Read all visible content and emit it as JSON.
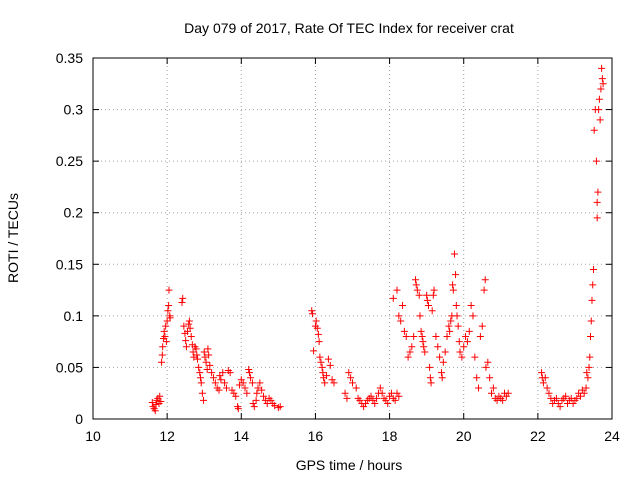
{
  "chart_data": {
    "type": "scatter",
    "title": "Day 079 of 2017, Rate Of TEC Index for receiver crat",
    "xlabel": "GPS time / hours",
    "ylabel": "ROTI / TECUs",
    "xlim": [
      10,
      24
    ],
    "ylim": [
      0,
      0.35
    ],
    "xticks": [
      10,
      12,
      14,
      16,
      18,
      20,
      22,
      24
    ],
    "yticks": [
      0,
      0.05,
      0.1,
      0.15,
      0.2,
      0.25,
      0.3,
      0.35
    ],
    "xtick_labels": [
      "10",
      "12",
      "14",
      "16",
      "18",
      "20",
      "22",
      "24"
    ],
    "ytick_labels": [
      "0",
      "0.05",
      "0.1",
      "0.15",
      "0.2",
      "0.25",
      "0.3",
      "0.35"
    ],
    "grid": true,
    "marker": "plus",
    "marker_color": "#ff0000",
    "series": [
      {
        "points": [
          [
            11.6,
            0.016
          ],
          [
            11.62,
            0.012
          ],
          [
            11.65,
            0.01
          ],
          [
            11.68,
            0.008
          ],
          [
            11.7,
            0.014
          ],
          [
            11.72,
            0.018
          ],
          [
            11.75,
            0.02
          ],
          [
            11.78,
            0.015
          ],
          [
            11.8,
            0.022
          ],
          [
            11.83,
            0.017
          ],
          [
            11.85,
            0.055
          ],
          [
            11.87,
            0.062
          ],
          [
            11.88,
            0.07
          ],
          [
            11.9,
            0.078
          ],
          [
            11.92,
            0.085
          ],
          [
            11.94,
            0.08
          ],
          [
            11.96,
            0.09
          ],
          [
            11.98,
            0.075
          ],
          [
            12.0,
            0.095
          ],
          [
            12.02,
            0.105
          ],
          [
            12.04,
            0.11
          ],
          [
            12.05,
            0.125
          ],
          [
            12.07,
            0.1
          ],
          [
            12.08,
            0.098
          ],
          [
            12.4,
            0.113
          ],
          [
            12.42,
            0.117
          ],
          [
            12.45,
            0.09
          ],
          [
            12.48,
            0.083
          ],
          [
            12.5,
            0.076
          ],
          [
            12.52,
            0.07
          ],
          [
            12.55,
            0.085
          ],
          [
            12.58,
            0.092
          ],
          [
            12.6,
            0.095
          ],
          [
            12.62,
            0.088
          ],
          [
            12.65,
            0.08
          ],
          [
            12.68,
            0.072
          ],
          [
            12.7,
            0.065
          ],
          [
            12.72,
            0.06
          ],
          [
            12.75,
            0.07
          ],
          [
            12.78,
            0.068
          ],
          [
            12.8,
            0.062
          ],
          [
            12.82,
            0.058
          ],
          [
            12.85,
            0.05
          ],
          [
            12.88,
            0.045
          ],
          [
            12.9,
            0.04
          ],
          [
            12.92,
            0.035
          ],
          [
            12.95,
            0.025
          ],
          [
            12.98,
            0.018
          ],
          [
            13.0,
            0.065
          ],
          [
            13.02,
            0.06
          ],
          [
            13.05,
            0.055
          ],
          [
            13.08,
            0.048
          ],
          [
            13.1,
            0.068
          ],
          [
            13.12,
            0.062
          ],
          [
            13.15,
            0.052
          ],
          [
            13.2,
            0.045
          ],
          [
            13.25,
            0.04
          ],
          [
            13.3,
            0.035
          ],
          [
            13.35,
            0.03
          ],
          [
            13.4,
            0.028
          ],
          [
            13.42,
            0.042
          ],
          [
            13.45,
            0.038
          ],
          [
            13.5,
            0.045
          ],
          [
            13.55,
            0.035
          ],
          [
            13.6,
            0.03
          ],
          [
            13.65,
            0.047
          ],
          [
            13.7,
            0.045
          ],
          [
            13.75,
            0.028
          ],
          [
            13.8,
            0.025
          ],
          [
            13.85,
            0.022
          ],
          [
            13.9,
            0.012
          ],
          [
            13.92,
            0.01
          ],
          [
            13.95,
            0.033
          ],
          [
            14.0,
            0.038
          ],
          [
            14.05,
            0.035
          ],
          [
            14.1,
            0.03
          ],
          [
            14.15,
            0.025
          ],
          [
            14.2,
            0.048
          ],
          [
            14.22,
            0.045
          ],
          [
            14.25,
            0.04
          ],
          [
            14.3,
            0.035
          ],
          [
            14.32,
            0.015
          ],
          [
            14.35,
            0.012
          ],
          [
            14.4,
            0.018
          ],
          [
            14.42,
            0.025
          ],
          [
            14.45,
            0.03
          ],
          [
            14.5,
            0.035
          ],
          [
            14.55,
            0.028
          ],
          [
            14.6,
            0.022
          ],
          [
            14.65,
            0.018
          ],
          [
            14.7,
            0.015
          ],
          [
            14.75,
            0.02
          ],
          [
            14.8,
            0.018
          ],
          [
            14.85,
            0.015
          ],
          [
            14.9,
            0.013
          ],
          [
            15.0,
            0.011
          ],
          [
            15.05,
            0.012
          ],
          [
            15.9,
            0.105
          ],
          [
            15.92,
            0.102
          ],
          [
            15.95,
            0.066
          ],
          [
            16.0,
            0.09
          ],
          [
            16.02,
            0.095
          ],
          [
            16.05,
            0.088
          ],
          [
            16.08,
            0.082
          ],
          [
            16.1,
            0.075
          ],
          [
            16.12,
            0.06
          ],
          [
            16.15,
            0.055
          ],
          [
            16.18,
            0.05
          ],
          [
            16.2,
            0.045
          ],
          [
            16.22,
            0.04
          ],
          [
            16.25,
            0.035
          ],
          [
            16.3,
            0.042
          ],
          [
            16.35,
            0.058
          ],
          [
            16.4,
            0.052
          ],
          [
            16.45,
            0.038
          ],
          [
            16.5,
            0.035
          ],
          [
            16.8,
            0.025
          ],
          [
            16.85,
            0.02
          ],
          [
            16.9,
            0.045
          ],
          [
            16.95,
            0.04
          ],
          [
            17.0,
            0.035
          ],
          [
            17.1,
            0.03
          ],
          [
            17.15,
            0.02
          ],
          [
            17.2,
            0.018
          ],
          [
            17.25,
            0.015
          ],
          [
            17.3,
            0.012
          ],
          [
            17.35,
            0.015
          ],
          [
            17.4,
            0.018
          ],
          [
            17.45,
            0.02
          ],
          [
            17.5,
            0.022
          ],
          [
            17.55,
            0.018
          ],
          [
            17.6,
            0.015
          ],
          [
            17.65,
            0.02
          ],
          [
            17.7,
            0.025
          ],
          [
            17.75,
            0.03
          ],
          [
            17.8,
            0.025
          ],
          [
            17.85,
            0.02
          ],
          [
            17.9,
            0.018
          ],
          [
            17.95,
            0.015
          ],
          [
            18.0,
            0.022
          ],
          [
            18.05,
            0.025
          ],
          [
            18.1,
            0.02
          ],
          [
            18.15,
            0.018
          ],
          [
            18.2,
            0.025
          ],
          [
            18.25,
            0.022
          ],
          [
            18.1,
            0.117
          ],
          [
            18.2,
            0.125
          ],
          [
            18.25,
            0.1
          ],
          [
            18.3,
            0.095
          ],
          [
            18.35,
            0.11
          ],
          [
            18.4,
            0.085
          ],
          [
            18.45,
            0.08
          ],
          [
            18.5,
            0.06
          ],
          [
            18.55,
            0.065
          ],
          [
            18.6,
            0.07
          ],
          [
            18.65,
            0.08
          ],
          [
            18.7,
            0.135
          ],
          [
            18.72,
            0.13
          ],
          [
            18.75,
            0.125
          ],
          [
            18.8,
            0.12
          ],
          [
            18.82,
            0.1
          ],
          [
            18.85,
            0.085
          ],
          [
            18.88,
            0.08
          ],
          [
            18.9,
            0.075
          ],
          [
            18.92,
            0.07
          ],
          [
            18.95,
            0.065
          ],
          [
            19.0,
            0.12
          ],
          [
            19.02,
            0.115
          ],
          [
            19.05,
            0.11
          ],
          [
            19.08,
            0.05
          ],
          [
            19.1,
            0.04
          ],
          [
            19.12,
            0.035
          ],
          [
            19.15,
            0.105
          ],
          [
            19.18,
            0.12
          ],
          [
            19.2,
            0.125
          ],
          [
            19.25,
            0.08
          ],
          [
            19.3,
            0.07
          ],
          [
            19.35,
            0.06
          ],
          [
            19.4,
            0.045
          ],
          [
            19.42,
            0.04
          ],
          [
            19.45,
            0.055
          ],
          [
            19.5,
            0.065
          ],
          [
            19.55,
            0.08
          ],
          [
            19.6,
            0.09
          ],
          [
            19.62,
            0.085
          ],
          [
            19.65,
            0.095
          ],
          [
            19.68,
            0.1
          ],
          [
            19.7,
            0.13
          ],
          [
            19.72,
            0.125
          ],
          [
            19.75,
            0.16
          ],
          [
            19.78,
            0.14
          ],
          [
            19.8,
            0.11
          ],
          [
            19.82,
            0.1
          ],
          [
            19.85,
            0.09
          ],
          [
            19.88,
            0.075
          ],
          [
            19.9,
            0.065
          ],
          [
            19.95,
            0.06
          ],
          [
            20.0,
            0.07
          ],
          [
            20.05,
            0.08
          ],
          [
            20.1,
            0.075
          ],
          [
            20.15,
            0.085
          ],
          [
            20.2,
            0.11
          ],
          [
            20.25,
            0.1
          ],
          [
            20.3,
            0.06
          ],
          [
            20.35,
            0.04
          ],
          [
            20.4,
            0.03
          ],
          [
            20.45,
            0.08
          ],
          [
            20.5,
            0.09
          ],
          [
            20.55,
            0.125
          ],
          [
            20.58,
            0.135
          ],
          [
            20.6,
            0.05
          ],
          [
            20.65,
            0.055
          ],
          [
            20.7,
            0.04
          ],
          [
            20.75,
            0.025
          ],
          [
            20.8,
            0.03
          ],
          [
            20.85,
            0.02
          ],
          [
            20.9,
            0.018
          ],
          [
            20.95,
            0.022
          ],
          [
            21.0,
            0.02
          ],
          [
            21.05,
            0.018
          ],
          [
            21.1,
            0.025
          ],
          [
            21.15,
            0.022
          ],
          [
            21.2,
            0.025
          ],
          [
            22.1,
            0.045
          ],
          [
            22.12,
            0.04
          ],
          [
            22.15,
            0.035
          ],
          [
            22.2,
            0.04
          ],
          [
            22.25,
            0.03
          ],
          [
            22.3,
            0.025
          ],
          [
            22.35,
            0.02
          ],
          [
            22.4,
            0.015
          ],
          [
            22.45,
            0.018
          ],
          [
            22.5,
            0.02
          ],
          [
            22.55,
            0.015
          ],
          [
            22.6,
            0.012
          ],
          [
            22.65,
            0.018
          ],
          [
            22.7,
            0.02
          ],
          [
            22.75,
            0.022
          ],
          [
            22.8,
            0.015
          ],
          [
            22.85,
            0.018
          ],
          [
            22.9,
            0.02
          ],
          [
            22.95,
            0.015
          ],
          [
            23.0,
            0.018
          ],
          [
            23.05,
            0.02
          ],
          [
            23.1,
            0.025
          ],
          [
            23.15,
            0.022
          ],
          [
            23.2,
            0.028
          ],
          [
            23.25,
            0.025
          ],
          [
            23.3,
            0.03
          ],
          [
            23.32,
            0.045
          ],
          [
            23.35,
            0.04
          ],
          [
            23.38,
            0.05
          ],
          [
            23.4,
            0.06
          ],
          [
            23.42,
            0.08
          ],
          [
            23.44,
            0.095
          ],
          [
            23.46,
            0.115
          ],
          [
            23.48,
            0.13
          ],
          [
            23.5,
            0.145
          ],
          [
            23.52,
            0.28
          ],
          [
            23.55,
            0.3
          ],
          [
            23.58,
            0.25
          ],
          [
            23.6,
            0.21
          ],
          [
            23.62,
            0.22
          ],
          [
            23.64,
            0.3
          ],
          [
            23.66,
            0.31
          ],
          [
            23.68,
            0.29
          ],
          [
            23.7,
            0.32
          ],
          [
            23.72,
            0.34
          ],
          [
            23.74,
            0.33
          ],
          [
            23.76,
            0.325
          ],
          [
            23.6,
            0.195
          ]
        ]
      }
    ]
  }
}
